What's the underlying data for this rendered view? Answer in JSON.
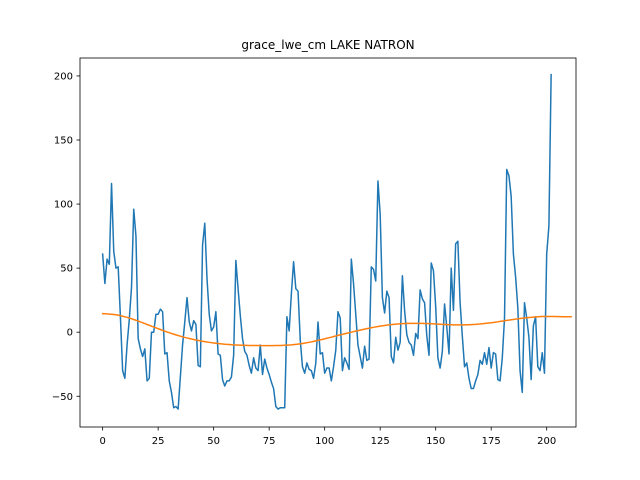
{
  "chart_data": {
    "type": "line",
    "title": "grace_lwe_cm LAKE NATRON",
    "xlabel": "",
    "ylabel": "",
    "xlim": [
      -10.2,
      213.2
    ],
    "ylim": [
      -74,
      214
    ],
    "xticks": [
      0,
      25,
      50,
      75,
      100,
      125,
      150,
      175,
      200
    ],
    "yticks": [
      -50,
      0,
      50,
      100,
      150,
      200
    ],
    "grid": false,
    "series": [
      {
        "color": "#1f77b4",
        "values": [
          61,
          38,
          57,
          53,
          116,
          63,
          50,
          51,
          12,
          -30,
          -36,
          -10,
          10,
          35,
          96,
          75,
          -5,
          -13,
          -19,
          -13,
          -38,
          -36,
          0,
          0,
          14,
          14,
          18,
          16,
          -17,
          -16,
          -38,
          -47,
          -59,
          -58,
          -60,
          -35,
          -10,
          8,
          27,
          8,
          1,
          9,
          6,
          -26,
          -27,
          68,
          85,
          42,
          14,
          1,
          4,
          16,
          -17,
          -18,
          -37,
          -42,
          -38,
          -38,
          -35,
          -18,
          56,
          34,
          13,
          -5,
          -15,
          -18,
          -26,
          -32,
          -20,
          -28,
          -30,
          -10,
          -33,
          -21,
          -28,
          -33,
          -39,
          -44,
          -58,
          -60,
          -59,
          -59,
          -59,
          12,
          1,
          30,
          55,
          34,
          32,
          -6,
          -27,
          -32,
          -24,
          -29,
          -30,
          -36,
          -24,
          8,
          -17,
          -16,
          -32,
          -28,
          -28,
          -38,
          -27,
          -14,
          16,
          11,
          -30,
          -20,
          -24,
          -29,
          57,
          38,
          14,
          -10,
          -19,
          -28,
          -11,
          -22,
          -21,
          51,
          49,
          40,
          118,
          92,
          27,
          15,
          32,
          27,
          -19,
          -24,
          -4,
          -14,
          -8,
          44,
          17,
          -2,
          -8,
          -10,
          -18,
          -1,
          -5,
          33,
          26,
          23,
          -3,
          -18,
          54,
          48,
          20,
          -20,
          -28,
          -15,
          22,
          4,
          -17,
          50,
          17,
          69,
          71,
          23,
          -3,
          -27,
          -24,
          -36,
          -44,
          -44,
          -38,
          -33,
          -22,
          -25,
          -16,
          -25,
          -12,
          -28,
          -16,
          -17,
          -37,
          -38,
          -20,
          11,
          127,
          122,
          106,
          61,
          43,
          19,
          -30,
          -47,
          23,
          11,
          -4,
          -37,
          5,
          12,
          -27,
          -30,
          -16,
          -32,
          61,
          83,
          201
        ]
      },
      {
        "color": "#ff7f0e",
        "values": [
          14.5,
          14.4,
          14.3,
          14.1,
          14.0,
          13.8,
          13.6,
          13.3,
          12.9,
          12.5,
          12.0,
          11.6,
          11.0,
          10.5,
          9.9,
          9.3,
          8.7,
          8.0,
          7.4,
          6.7,
          6.0,
          5.4,
          4.7,
          4.0,
          3.4,
          2.7,
          2.1,
          1.4,
          0.8,
          0.2,
          -0.4,
          -1.0,
          -1.5,
          -2.1,
          -2.6,
          -3.1,
          -3.6,
          -4.1,
          -4.5,
          -4.9,
          -5.3,
          -5.7,
          -6.1,
          -6.4,
          -6.8,
          -7.1,
          -7.4,
          -7.7,
          -7.9,
          -8.2,
          -8.4,
          -8.6,
          -8.8,
          -9.0,
          -9.2,
          -9.4,
          -9.5,
          -9.6,
          -9.8,
          -9.9,
          -10.0,
          -10.1,
          -10.1,
          -10.2,
          -10.3,
          -10.3,
          -10.4,
          -10.4,
          -10.4,
          -10.4,
          -10.4,
          -10.5,
          -10.5,
          -10.5,
          -10.5,
          -10.5,
          -10.5,
          -10.5,
          -10.4,
          -10.4,
          -10.4,
          -10.3,
          -10.2,
          -10.1,
          -10.0,
          -9.9,
          -9.7,
          -9.5,
          -9.3,
          -9.1,
          -8.8,
          -8.5,
          -8.2,
          -7.9,
          -7.6,
          -7.2,
          -6.8,
          -6.4,
          -6.0,
          -5.6,
          -5.2,
          -4.7,
          -4.3,
          -3.9,
          -3.4,
          -3.0,
          -2.5,
          -2.1,
          -1.7,
          -1.2,
          -0.8,
          -0.4,
          0.0,
          0.4,
          0.8,
          1.2,
          1.6,
          2.0,
          2.4,
          2.8,
          3.1,
          3.5,
          3.8,
          4.1,
          4.4,
          4.7,
          5.0,
          5.2,
          5.5,
          5.7,
          5.9,
          6.1,
          6.3,
          6.4,
          6.6,
          6.7,
          6.8,
          6.8,
          6.9,
          6.9,
          6.9,
          6.9,
          6.9,
          6.9,
          6.9,
          6.8,
          6.8,
          6.7,
          6.6,
          6.5,
          6.4,
          6.3,
          6.2,
          6.1,
          6.0,
          5.9,
          5.8,
          5.8,
          5.7,
          5.7,
          5.7,
          5.7,
          5.7,
          5.7,
          5.8,
          5.8,
          5.9,
          6.0,
          6.1,
          6.3,
          6.4,
          6.6,
          6.8,
          7.0,
          7.2,
          7.4,
          7.6,
          7.9,
          8.1,
          8.4,
          8.6,
          8.9,
          9.2,
          9.4,
          9.7,
          9.9,
          10.2,
          10.4,
          10.7,
          10.9,
          11.1,
          11.3,
          11.5,
          11.6,
          11.8,
          11.9,
          12.0,
          12.1,
          12.2,
          12.2,
          12.2,
          12.2,
          12.2,
          12.2,
          12.2,
          12.1,
          12.1,
          12.0,
          12.0,
          12.0,
          12.0,
          12.0
        ]
      }
    ]
  }
}
